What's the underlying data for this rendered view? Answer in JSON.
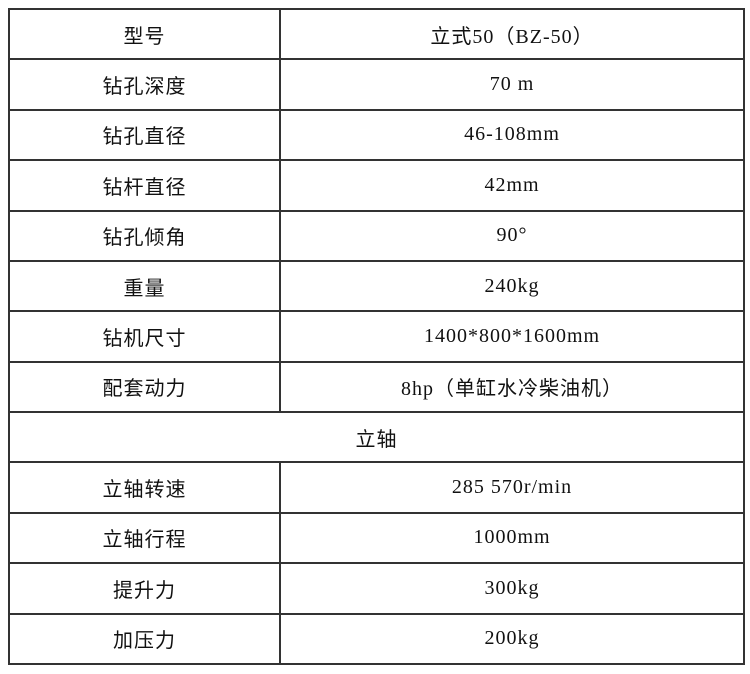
{
  "table": {
    "border_color": "#333333",
    "text_color": "#111111",
    "background": "#ffffff",
    "section_header": "立轴",
    "rows": [
      {
        "label": "型号",
        "value": "立式50（BZ-50）"
      },
      {
        "label": "钻孔深度",
        "value": "70 m"
      },
      {
        "label": "钻孔直径",
        "value": "46-108mm"
      },
      {
        "label": "钻杆直径",
        "value": "42mm"
      },
      {
        "label": "钻孔倾角",
        "value": "90°"
      },
      {
        "label": "重量",
        "value": "240kg"
      },
      {
        "label": "钻机尺寸",
        "value": "1400*800*1600mm"
      },
      {
        "label": "配套动力",
        "value": "8hp（单缸水冷柴油机）"
      }
    ],
    "rows_after_section": [
      {
        "label": "立轴转速",
        "value": "285 570r/min"
      },
      {
        "label": "立轴行程",
        "value": "1000mm"
      },
      {
        "label": "提升力",
        "value": "300kg"
      },
      {
        "label": "加压力",
        "value": "200kg"
      }
    ]
  }
}
